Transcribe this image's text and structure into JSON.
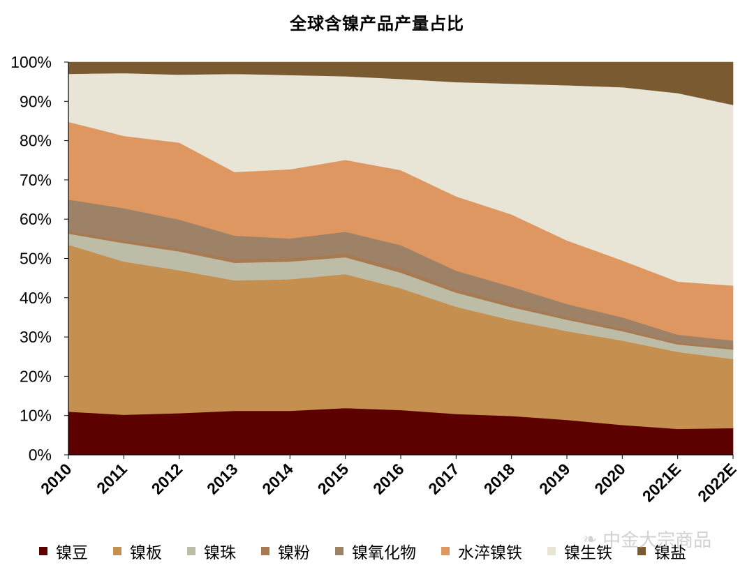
{
  "chart_data": {
    "type": "area",
    "stacked": true,
    "title": "全球含镍产品产量占比",
    "xlabel": "",
    "ylabel": "",
    "ylim": [
      0,
      100
    ],
    "y_ticks": [
      "0%",
      "10%",
      "20%",
      "30%",
      "40%",
      "50%",
      "60%",
      "70%",
      "80%",
      "90%",
      "100%"
    ],
    "categories": [
      "2010",
      "2011",
      "2012",
      "2013",
      "2014",
      "2015",
      "2016",
      "2017",
      "2018",
      "2019",
      "2020",
      "2021E",
      "2022E"
    ],
    "legend_position": "bottom",
    "grid": false,
    "series": [
      {
        "name": "镍豆",
        "color": "#5c0000",
        "values": [
          11.0,
          10.2,
          10.6,
          11.2,
          11.2,
          11.9,
          11.4,
          10.4,
          9.9,
          8.9,
          7.6,
          6.6,
          6.8
        ]
      },
      {
        "name": "镍板",
        "color": "#c48f4f",
        "values": [
          42.5,
          39.0,
          36.4,
          33.2,
          33.5,
          34.1,
          31.0,
          27.3,
          24.4,
          22.6,
          21.5,
          19.6,
          17.6
        ]
      },
      {
        "name": "镍珠",
        "color": "#bdbda7",
        "values": [
          2.8,
          4.7,
          4.8,
          4.5,
          4.5,
          4.3,
          4.0,
          3.6,
          3.3,
          2.9,
          2.4,
          1.9,
          2.4
        ]
      },
      {
        "name": "镍粉",
        "color": "#a87a52",
        "values": [
          0.7,
          0.7,
          0.8,
          0.9,
          0.9,
          0.9,
          1.1,
          0.8,
          0.8,
          0.6,
          0.6,
          0.5,
          0.5
        ]
      },
      {
        "name": "镍氧化物",
        "color": "#9e8268",
        "values": [
          8.0,
          8.2,
          7.3,
          6.0,
          5.0,
          5.6,
          5.9,
          4.8,
          4.4,
          3.4,
          2.9,
          2.0,
          1.8
        ]
      },
      {
        "name": "水淬镍铁",
        "color": "#de9760",
        "values": [
          19.8,
          18.4,
          19.6,
          16.2,
          17.6,
          18.3,
          19.1,
          18.9,
          18.4,
          16.2,
          14.5,
          13.5,
          14.0
        ]
      },
      {
        "name": "镍生铁",
        "color": "#e8e5d7",
        "values": [
          12.2,
          16.0,
          17.3,
          25.0,
          24.0,
          21.3,
          23.2,
          29.1,
          33.3,
          39.5,
          44.1,
          48.0,
          46.0
        ]
      },
      {
        "name": "镍盐",
        "color": "#7a5a30",
        "values": [
          3.0,
          2.8,
          3.2,
          3.0,
          3.3,
          3.6,
          4.3,
          5.1,
          5.5,
          5.9,
          6.4,
          7.9,
          10.9
        ]
      }
    ]
  },
  "watermark": {
    "text": "中金大宗商品",
    "icon": "wechat-icon"
  }
}
